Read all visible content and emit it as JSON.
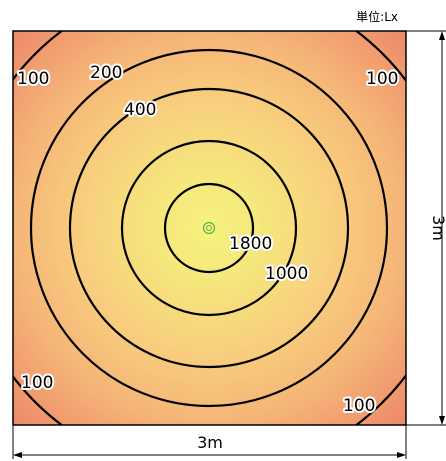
{
  "unit_label": "単位:Lx",
  "dimensions": {
    "width_label": "3m",
    "height_label": "3m"
  },
  "contours": {
    "labels": {
      "c1800": "1800",
      "c1000": "1000",
      "c400": "400",
      "c200": "200",
      "c100_top_left": "100",
      "c100_top_right": "100",
      "c100_bottom_left": "100",
      "c100_bottom_right": "100"
    }
  },
  "colors": {
    "center": "#f5ef7a",
    "mid": "#f9c77b",
    "edge": "#f3a070",
    "corner": "#ee8e6c",
    "contour_line": "#000000",
    "center_marker": "#59b04a"
  },
  "icons": {
    "center_marker": "light-source-marker-icon"
  }
}
